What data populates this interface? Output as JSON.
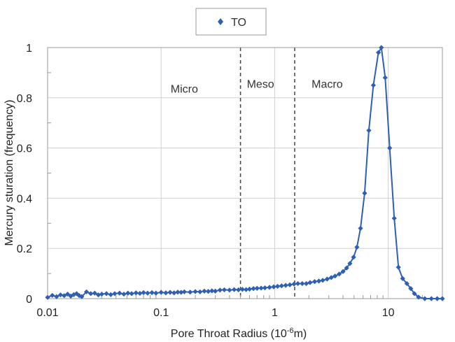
{
  "chart_data": {
    "type": "scatter",
    "legend": {
      "entries": [
        "TO"
      ],
      "placement": "top-center"
    },
    "xlabel": "Pore Throat Radius (10",
    "xlabel_exponent": "-6",
    "xlabel_suffix": "m)",
    "ylabel": "Mercury sturation (frequency)",
    "xscale": "log",
    "xlim": [
      0.01,
      30
    ],
    "ylim": [
      0,
      1
    ],
    "x_ticks": [
      "0.01",
      "0.1",
      "1",
      "10"
    ],
    "y_ticks": [
      "0",
      "0.2",
      "0.4",
      "0.6",
      "0.8",
      "1"
    ],
    "grid": true,
    "region_boundaries": [
      0.5,
      1.5
    ],
    "region_labels": [
      {
        "text": "Micro",
        "x": 0.16,
        "y": 0.82
      },
      {
        "text": "Meso",
        "x": 0.75,
        "y": 0.84
      },
      {
        "text": "Macro",
        "x": 2.9,
        "y": 0.84
      }
    ],
    "colors": {
      "series": "#2f5fb3",
      "grid": "#d0d0d0",
      "frame": "#999999",
      "boundary": "#444444"
    },
    "series": [
      {
        "name": "TO",
        "marker": "diamond",
        "points": [
          [
            0.01,
            0.005
          ],
          [
            0.011,
            0.013
          ],
          [
            0.012,
            0.008
          ],
          [
            0.013,
            0.015
          ],
          [
            0.014,
            0.012
          ],
          [
            0.015,
            0.018
          ],
          [
            0.016,
            0.01
          ],
          [
            0.017,
            0.016
          ],
          [
            0.018,
            0.02
          ],
          [
            0.019,
            0.012
          ],
          [
            0.02,
            0.008
          ],
          [
            0.022,
            0.027
          ],
          [
            0.024,
            0.02
          ],
          [
            0.026,
            0.022
          ],
          [
            0.028,
            0.015
          ],
          [
            0.03,
            0.018
          ],
          [
            0.033,
            0.02
          ],
          [
            0.036,
            0.016
          ],
          [
            0.039,
            0.02
          ],
          [
            0.043,
            0.022
          ],
          [
            0.047,
            0.018
          ],
          [
            0.051,
            0.022
          ],
          [
            0.055,
            0.02
          ],
          [
            0.06,
            0.023
          ],
          [
            0.065,
            0.021
          ],
          [
            0.07,
            0.024
          ],
          [
            0.076,
            0.022
          ],
          [
            0.083,
            0.024
          ],
          [
            0.09,
            0.022
          ],
          [
            0.1,
            0.025
          ],
          [
            0.11,
            0.023
          ],
          [
            0.12,
            0.025
          ],
          [
            0.13,
            0.023
          ],
          [
            0.14,
            0.026
          ],
          [
            0.15,
            0.025
          ],
          [
            0.16,
            0.027
          ],
          [
            0.18,
            0.026
          ],
          [
            0.2,
            0.028
          ],
          [
            0.22,
            0.027
          ],
          [
            0.24,
            0.03
          ],
          [
            0.26,
            0.029
          ],
          [
            0.28,
            0.031
          ],
          [
            0.3,
            0.03
          ],
          [
            0.33,
            0.034
          ],
          [
            0.36,
            0.035
          ],
          [
            0.4,
            0.034
          ],
          [
            0.44,
            0.036
          ],
          [
            0.48,
            0.035
          ],
          [
            0.52,
            0.037
          ],
          [
            0.56,
            0.036
          ],
          [
            0.6,
            0.038
          ],
          [
            0.65,
            0.04
          ],
          [
            0.7,
            0.041
          ],
          [
            0.76,
            0.042
          ],
          [
            0.82,
            0.043
          ],
          [
            0.9,
            0.045
          ],
          [
            0.98,
            0.047
          ],
          [
            1.06,
            0.049
          ],
          [
            1.15,
            0.051
          ],
          [
            1.25,
            0.053
          ],
          [
            1.36,
            0.055
          ],
          [
            1.48,
            0.058
          ],
          [
            1.6,
            0.06
          ],
          [
            1.75,
            0.06
          ],
          [
            1.9,
            0.06
          ],
          [
            2.05,
            0.064
          ],
          [
            2.25,
            0.068
          ],
          [
            2.45,
            0.07
          ],
          [
            2.65,
            0.073
          ],
          [
            2.9,
            0.078
          ],
          [
            3.15,
            0.084
          ],
          [
            3.4,
            0.09
          ],
          [
            3.7,
            0.098
          ],
          [
            4.0,
            0.108
          ],
          [
            4.3,
            0.122
          ],
          [
            4.6,
            0.14
          ],
          [
            4.95,
            0.165
          ],
          [
            5.3,
            0.205
          ],
          [
            5.7,
            0.28
          ],
          [
            6.2,
            0.42
          ],
          [
            6.75,
            0.67
          ],
          [
            7.4,
            0.85
          ],
          [
            8.2,
            0.98
          ],
          [
            8.7,
            1.0
          ],
          [
            9.4,
            0.88
          ],
          [
            10.3,
            0.6
          ],
          [
            11.3,
            0.32
          ],
          [
            12.3,
            0.125
          ],
          [
            13.4,
            0.08
          ],
          [
            14.6,
            0.06
          ],
          [
            15.8,
            0.04
          ],
          [
            17.0,
            0.02
          ],
          [
            18.5,
            0.006
          ],
          [
            21.0,
            0.0
          ],
          [
            24.0,
            0.0
          ],
          [
            27.0,
            0.0
          ],
          [
            30.0,
            0.0
          ]
        ]
      }
    ]
  }
}
